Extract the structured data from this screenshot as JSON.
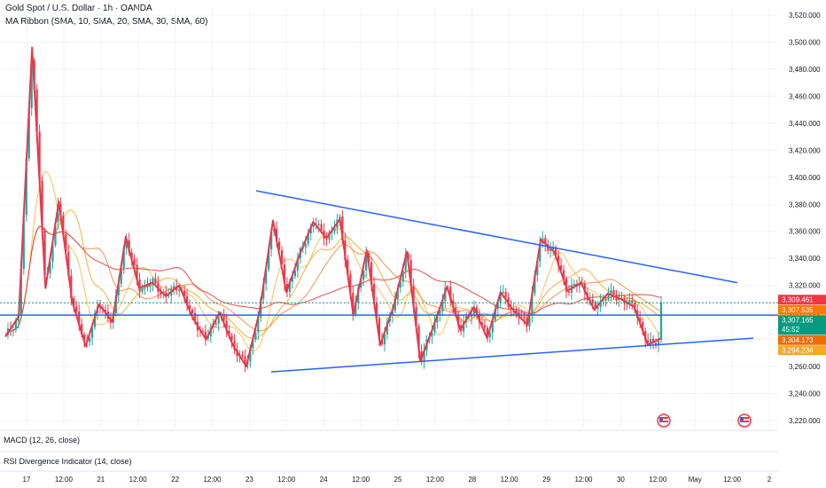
{
  "header": {
    "title": "Gold Spot / U.S. Dollar · 1h · OANDA",
    "ribbon": "MA Ribbon (SMA, 10, SMA, 20, SMA, 30, SMA, 60)"
  },
  "indicators": {
    "macd": "MACD (12, 26, close)",
    "rsi": "RSI Divergence Indicator (14, close)"
  },
  "colors": {
    "up": "#26a69a",
    "down": "#f23645",
    "trendline": "#2962ff",
    "zigzag": "#e53950",
    "sma10": "#ffb74d",
    "sma20": "#f6a623",
    "sma30": "#ef8a3a",
    "sma60": "#e53935"
  },
  "chart_data": {
    "type": "candlestick",
    "y_range": [
      3220,
      3520
    ],
    "y_ticks": [
      "3,520.000",
      "3,500.000",
      "3,480.000",
      "3,460.000",
      "3,440.000",
      "3,420.000",
      "3,400.000",
      "3,380.000",
      "3,360.000",
      "3,340.000",
      "3,320.000",
      "3,300.000",
      "3,280.000",
      "3,260.000",
      "3,240.000",
      "3,220.000"
    ],
    "x_ticks": [
      "17",
      "12:00",
      "21",
      "12:00",
      "22",
      "12:00",
      "23",
      "12:00",
      "24",
      "12:00",
      "25",
      "12:00",
      "28",
      "12:00",
      "29",
      "12:00",
      "30",
      "12:00",
      "May",
      "12:00",
      "2"
    ],
    "zigzag": [
      3282,
      3297,
      3496,
      3318,
      3382,
      3308,
      3275,
      3306,
      3293,
      3356,
      3318,
      3322,
      3312,
      3320,
      3296,
      3280,
      3300,
      3276,
      3260,
      3301,
      3368,
      3315,
      3343,
      3367,
      3355,
      3369,
      3298,
      3346,
      3276,
      3304,
      3345,
      3264,
      3290,
      3319,
      3287,
      3304,
      3281,
      3315,
      3301,
      3291,
      3354,
      3345,
      3316,
      3322,
      3302,
      3314,
      3310,
      3304,
      3276,
      3281
    ],
    "support_line": {
      "start": 3256,
      "end": 3281
    },
    "resistance_line": {
      "start": 3390,
      "end": 3322
    },
    "horizontal_line": 3298,
    "price_labels": [
      {
        "value": 3309.461,
        "text": "3,309.461",
        "color": "#f23645"
      },
      {
        "value": 3307.535,
        "text": "3,307.535",
        "color": "#f57c00"
      },
      {
        "value": 3307.165,
        "text": "3,307.165",
        "sub": "45:52",
        "color": "#089981"
      },
      {
        "value": 3304.173,
        "text": "3,304.173",
        "color": "#ef6c00"
      },
      {
        "value": 3294.234,
        "text": "3,294.234",
        "color": "#f9a825"
      }
    ]
  }
}
